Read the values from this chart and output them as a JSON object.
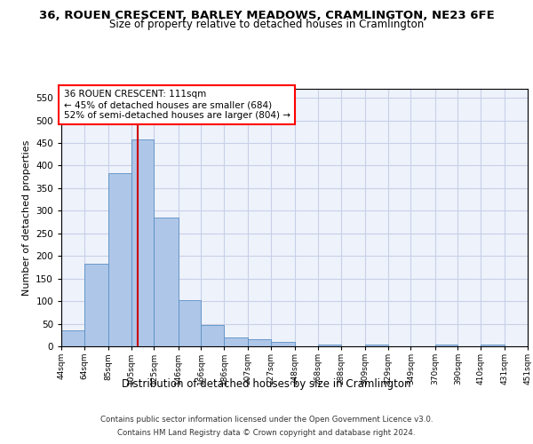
{
  "title_line1": "36, ROUEN CRESCENT, BARLEY MEADOWS, CRAMLINGTON, NE23 6FE",
  "title_line2": "Size of property relative to detached houses in Cramlington",
  "xlabel": "Distribution of detached houses by size in Cramlington",
  "ylabel": "Number of detached properties",
  "footer_line1": "Contains HM Land Registry data © Crown copyright and database right 2024.",
  "footer_line2": "Contains public sector information licensed under the Open Government Licence v3.0.",
  "annotation_line1": "36 ROUEN CRESCENT: 111sqm",
  "annotation_line2": "← 45% of detached houses are smaller (684)",
  "annotation_line3": "52% of semi-detached houses are larger (804) →",
  "red_line_x": 111,
  "bin_edges": [
    44,
    64,
    85,
    105,
    125,
    146,
    166,
    186,
    207,
    227,
    248,
    268,
    288,
    309,
    329,
    349,
    370,
    390,
    410,
    431,
    451
  ],
  "bar_values": [
    35,
    183,
    384,
    457,
    285,
    103,
    47,
    20,
    15,
    9,
    0,
    4,
    0,
    4,
    0,
    0,
    4,
    0,
    4,
    0,
    4
  ],
  "bar_color": "#aec6e8",
  "bar_edge_color": "#5a8fc4",
  "red_line_color": "#cc0000",
  "background_color": "#eef2fb",
  "grid_color": "#c8d0e8",
  "ylim": [
    0,
    570
  ],
  "yticks": [
    0,
    50,
    100,
    150,
    200,
    250,
    300,
    350,
    400,
    450,
    500,
    550
  ]
}
